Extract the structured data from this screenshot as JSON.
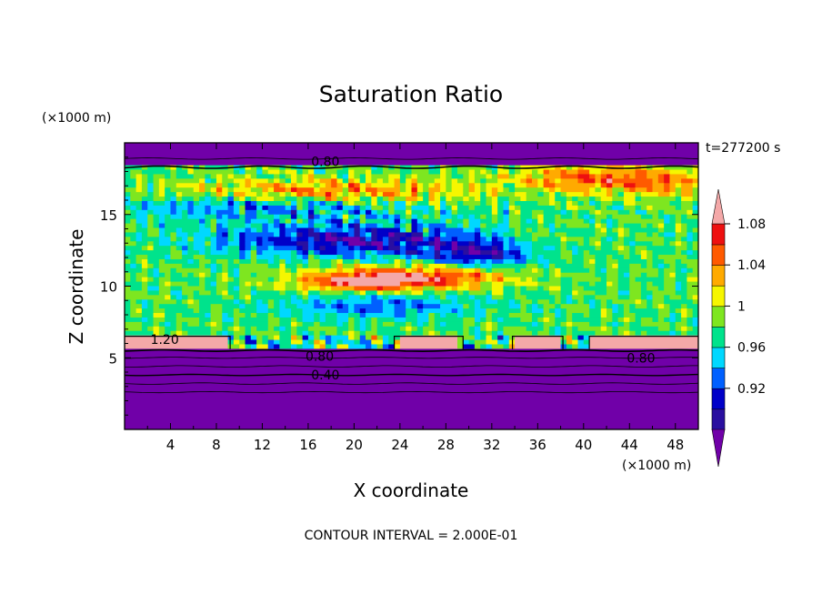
{
  "chart_data": {
    "type": "heatmap",
    "title": "Saturation Ratio",
    "time_label": "t=277200 s",
    "xlabel": "X coordinate",
    "ylabel": "Z coordinate",
    "x_unit": "(×1000 m)",
    "y_unit": "(×1000 m)",
    "footer": "CONTOUR INTERVAL = 2.000E-01",
    "xlim": [
      0,
      50
    ],
    "ylim": [
      0,
      20
    ],
    "x_ticks": [
      4,
      8,
      12,
      16,
      20,
      24,
      28,
      32,
      36,
      40,
      44,
      48
    ],
    "y_ticks": [
      5,
      10,
      15
    ],
    "colorbar_labels": [
      "1.08",
      "1.04",
      "1",
      "0.96",
      "0.92"
    ],
    "colorbar_colors": [
      "#7000a8",
      "#2a0fa0",
      "#0000c8",
      "#0060ff",
      "#00d8ff",
      "#00e38c",
      "#7ee620",
      "#f6f600",
      "#ffaa00",
      "#ff5a00",
      "#ee1010",
      "#f4a8a8"
    ],
    "contour_labels": [
      {
        "text": "0.80",
        "x": 17.5,
        "z": 18.7
      },
      {
        "text": "1.20",
        "x": 3.5,
        "z": 6.3
      },
      {
        "text": "0.80",
        "x": 17,
        "z": 5.1
      },
      {
        "text": "0.40",
        "x": 17.5,
        "z": 3.8
      },
      {
        "text": "0.80",
        "x": 45,
        "z": 5.0
      }
    ]
  }
}
